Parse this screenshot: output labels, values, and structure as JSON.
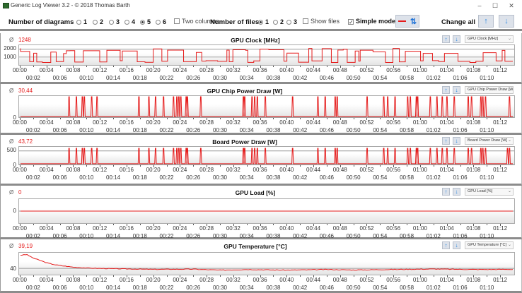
{
  "window": {
    "title": "Generic Log Viewer 3.2 - © 2018 Thomas Barth",
    "minimize": "–",
    "maximize": "☐",
    "close": "✕"
  },
  "toolbar": {
    "num_diagrams_label": "Number of diagrams",
    "diagram_options": [
      "1",
      "2",
      "3",
      "4",
      "5",
      "6"
    ],
    "diagram_selected": "5",
    "two_columns_label": "Two columns",
    "two_columns_checked": false,
    "num_files_label": "Number of files",
    "file_options": [
      "1",
      "2",
      "3"
    ],
    "file_selected": "1",
    "show_files_label": "Show files",
    "show_files_checked": false,
    "simple_mode_label": "Simple mode",
    "simple_mode_checked": true,
    "change_all_label": "Change all",
    "accent_red": "#e51c1c",
    "accent_blue": "#2f8ae0"
  },
  "x_ticks_top": [
    "00:00",
    "00:04",
    "00:08",
    "00:12",
    "00:16",
    "00:20",
    "00:24",
    "00:28",
    "00:32",
    "00:36",
    "00:40",
    "00:44",
    "00:48",
    "00:52",
    "00:56",
    "01:00",
    "01:04",
    "01:08",
    "01:12"
  ],
  "x_ticks_bottom": [
    "00:02",
    "00:06",
    "00:10",
    "00:14",
    "00:18",
    "00:22",
    "00:26",
    "00:30",
    "00:34",
    "00:38",
    "00:42",
    "00:46",
    "00:50",
    "00:54",
    "00:58",
    "01:02",
    "01:06",
    "01:10"
  ],
  "avg_symbol": "Ø",
  "chart_data": [
    {
      "type": "line",
      "title": "GPU Clock [MHz]",
      "average": "1248",
      "selector": "GPU Clock [MHz]",
      "yticks": [
        "2000",
        "1000"
      ],
      "ytick_values": [
        2000,
        1000
      ],
      "ylim": [
        0,
        2500
      ],
      "xlim_minutes": [
        0,
        74
      ],
      "pattern": "square-wave",
      "low": 300,
      "high": 2100,
      "color": "#e51c1c"
    },
    {
      "type": "line",
      "title": "GPU Chip Power Draw [W]",
      "average": "30,44",
      "selector": "GPU Chip Power Draw [W",
      "yticks": [
        "0"
      ],
      "ytick_values": [
        0
      ],
      "ylim": [
        0,
        300
      ],
      "xlim_minutes": [
        0,
        74
      ],
      "pattern": "spikes",
      "baseline": 8,
      "spike": 290,
      "spike_minutes": [
        7.3,
        8.4,
        9.3,
        9.6,
        10.7,
        11.5,
        17.8,
        19.3,
        20.3,
        21.5,
        23.0,
        23.5,
        23.8,
        24.1,
        24.9,
        25.1,
        27.1,
        33.5,
        33.7,
        34.8,
        35.2,
        35.6,
        36.8,
        40.9,
        44.7,
        45.8,
        47.3,
        47.6,
        52.1,
        54.6,
        55.2,
        56.3,
        58.2,
        58.6,
        59.5,
        59.7,
        61.6,
        62.6,
        63.4,
        64.1,
        65.2,
        67.3,
        67.8,
        69.2,
        69.5,
        69.9,
        73.5
      ],
      "color": "#e51c1c"
    },
    {
      "type": "line",
      "title": "Board Power Draw [W]",
      "average": "43,72",
      "selector": "Board Power Draw [W]",
      "yticks": [
        "500",
        "0"
      ],
      "ytick_values": [
        500,
        0
      ],
      "ylim": [
        0,
        650
      ],
      "xlim_minutes": [
        0,
        74
      ],
      "pattern": "spikes",
      "baseline": 30,
      "spike": 600,
      "spike_minutes": [
        7.3,
        8.4,
        9.3,
        9.6,
        10.7,
        11.5,
        17.8,
        19.3,
        20.3,
        21.5,
        23.0,
        23.5,
        23.8,
        24.1,
        24.9,
        25.1,
        27.1,
        33.5,
        33.7,
        34.8,
        35.2,
        35.6,
        36.8,
        40.9,
        44.7,
        45.8,
        47.3,
        47.6,
        52.1,
        54.6,
        55.2,
        56.3,
        58.2,
        58.6,
        59.5,
        59.7,
        61.6,
        62.6,
        63.4,
        64.1,
        65.2,
        67.3,
        67.8,
        69.2,
        69.5,
        69.9,
        73.2,
        73.5
      ],
      "color": "#e51c1c"
    },
    {
      "type": "line",
      "title": "GPU Load [%]",
      "average": "0",
      "selector": "GPU Load [%]",
      "yticks": [
        "0"
      ],
      "ytick_values": [
        0
      ],
      "ylim": [
        -1,
        1
      ],
      "xlim_minutes": [
        0,
        74
      ],
      "pattern": "flat",
      "value": 0,
      "color": "#e51c1c"
    },
    {
      "type": "line",
      "title": "GPU Temperature [°C]",
      "average": "39,19",
      "selector": "GPU Temperature [°C]",
      "yticks": [
        "40"
      ],
      "ytick_values": [
        40
      ],
      "ylim": [
        36,
        50
      ],
      "xlim_minutes": [
        0,
        74
      ],
      "pattern": "decay",
      "points": [
        [
          0,
          48.5
        ],
        [
          1,
          48.8
        ],
        [
          1.5,
          47.5
        ],
        [
          2,
          46.5
        ],
        [
          3,
          45
        ],
        [
          4,
          43.5
        ],
        [
          5,
          42.5
        ],
        [
          6,
          41.8
        ],
        [
          8,
          40.8
        ],
        [
          10,
          40.2
        ],
        [
          14,
          39.8
        ],
        [
          20,
          39.4
        ],
        [
          26,
          39.5
        ],
        [
          30,
          38.9
        ],
        [
          34,
          39.3
        ],
        [
          40,
          38.9
        ],
        [
          46,
          39.3
        ],
        [
          50,
          39.0
        ],
        [
          56,
          39.3
        ],
        [
          62,
          39.6
        ],
        [
          66,
          39.4
        ],
        [
          70,
          39.3
        ],
        [
          74,
          39.4
        ]
      ],
      "color": "#e51c1c"
    }
  ]
}
